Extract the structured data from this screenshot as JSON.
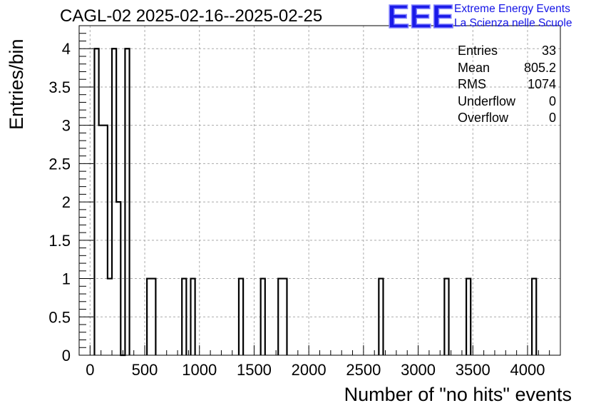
{
  "title": "CAGL-02 2025-02-16--2025-02-25",
  "logo": {
    "mark": "EEE",
    "line1": "Extreme Energy Events",
    "line2": "La Scienza nelle Scuole",
    "color": "#1414e6"
  },
  "stats": [
    {
      "label": "Entries",
      "value": "33"
    },
    {
      "label": "Mean",
      "value": "805.2"
    },
    {
      "label": "RMS",
      "value": "1074"
    },
    {
      "label": "Underflow",
      "value": "0"
    },
    {
      "label": "Overflow",
      "value": "0"
    }
  ],
  "chart_data": {
    "type": "bar",
    "style": "step-histogram",
    "xlabel": "Number of \"no hits\" events",
    "ylabel": "Entries/bin",
    "xlim": [
      -100,
      4300
    ],
    "ylim": [
      0,
      4.3
    ],
    "grid": true,
    "x_ticks": [
      0,
      500,
      1000,
      1500,
      2000,
      2500,
      3000,
      3500,
      4000
    ],
    "x_tick_labels": [
      "0",
      "500",
      "1000",
      "1500",
      "2000",
      "2500",
      "3000",
      "3500",
      "4000"
    ],
    "y_ticks": [
      0,
      0.5,
      1,
      1.5,
      2,
      2.5,
      3,
      3.5,
      4
    ],
    "y_tick_labels": [
      "0",
      "0.5",
      "1",
      "1.5",
      "2",
      "2.5",
      "3",
      "3.5",
      "4"
    ],
    "bin_width": 40,
    "bin_starts": [
      40,
      80,
      120,
      160,
      200,
      240,
      280,
      320,
      520,
      560,
      840,
      920,
      1360,
      1560,
      1720,
      1760,
      2640,
      3240,
      3440,
      4040
    ],
    "values": [
      4,
      3,
      3,
      1,
      4,
      2,
      0,
      4,
      1,
      1,
      1,
      1,
      1,
      1,
      1,
      1,
      1,
      1,
      1,
      1
    ],
    "line_color": "#000000",
    "grid_color": "#aaaaaa"
  }
}
